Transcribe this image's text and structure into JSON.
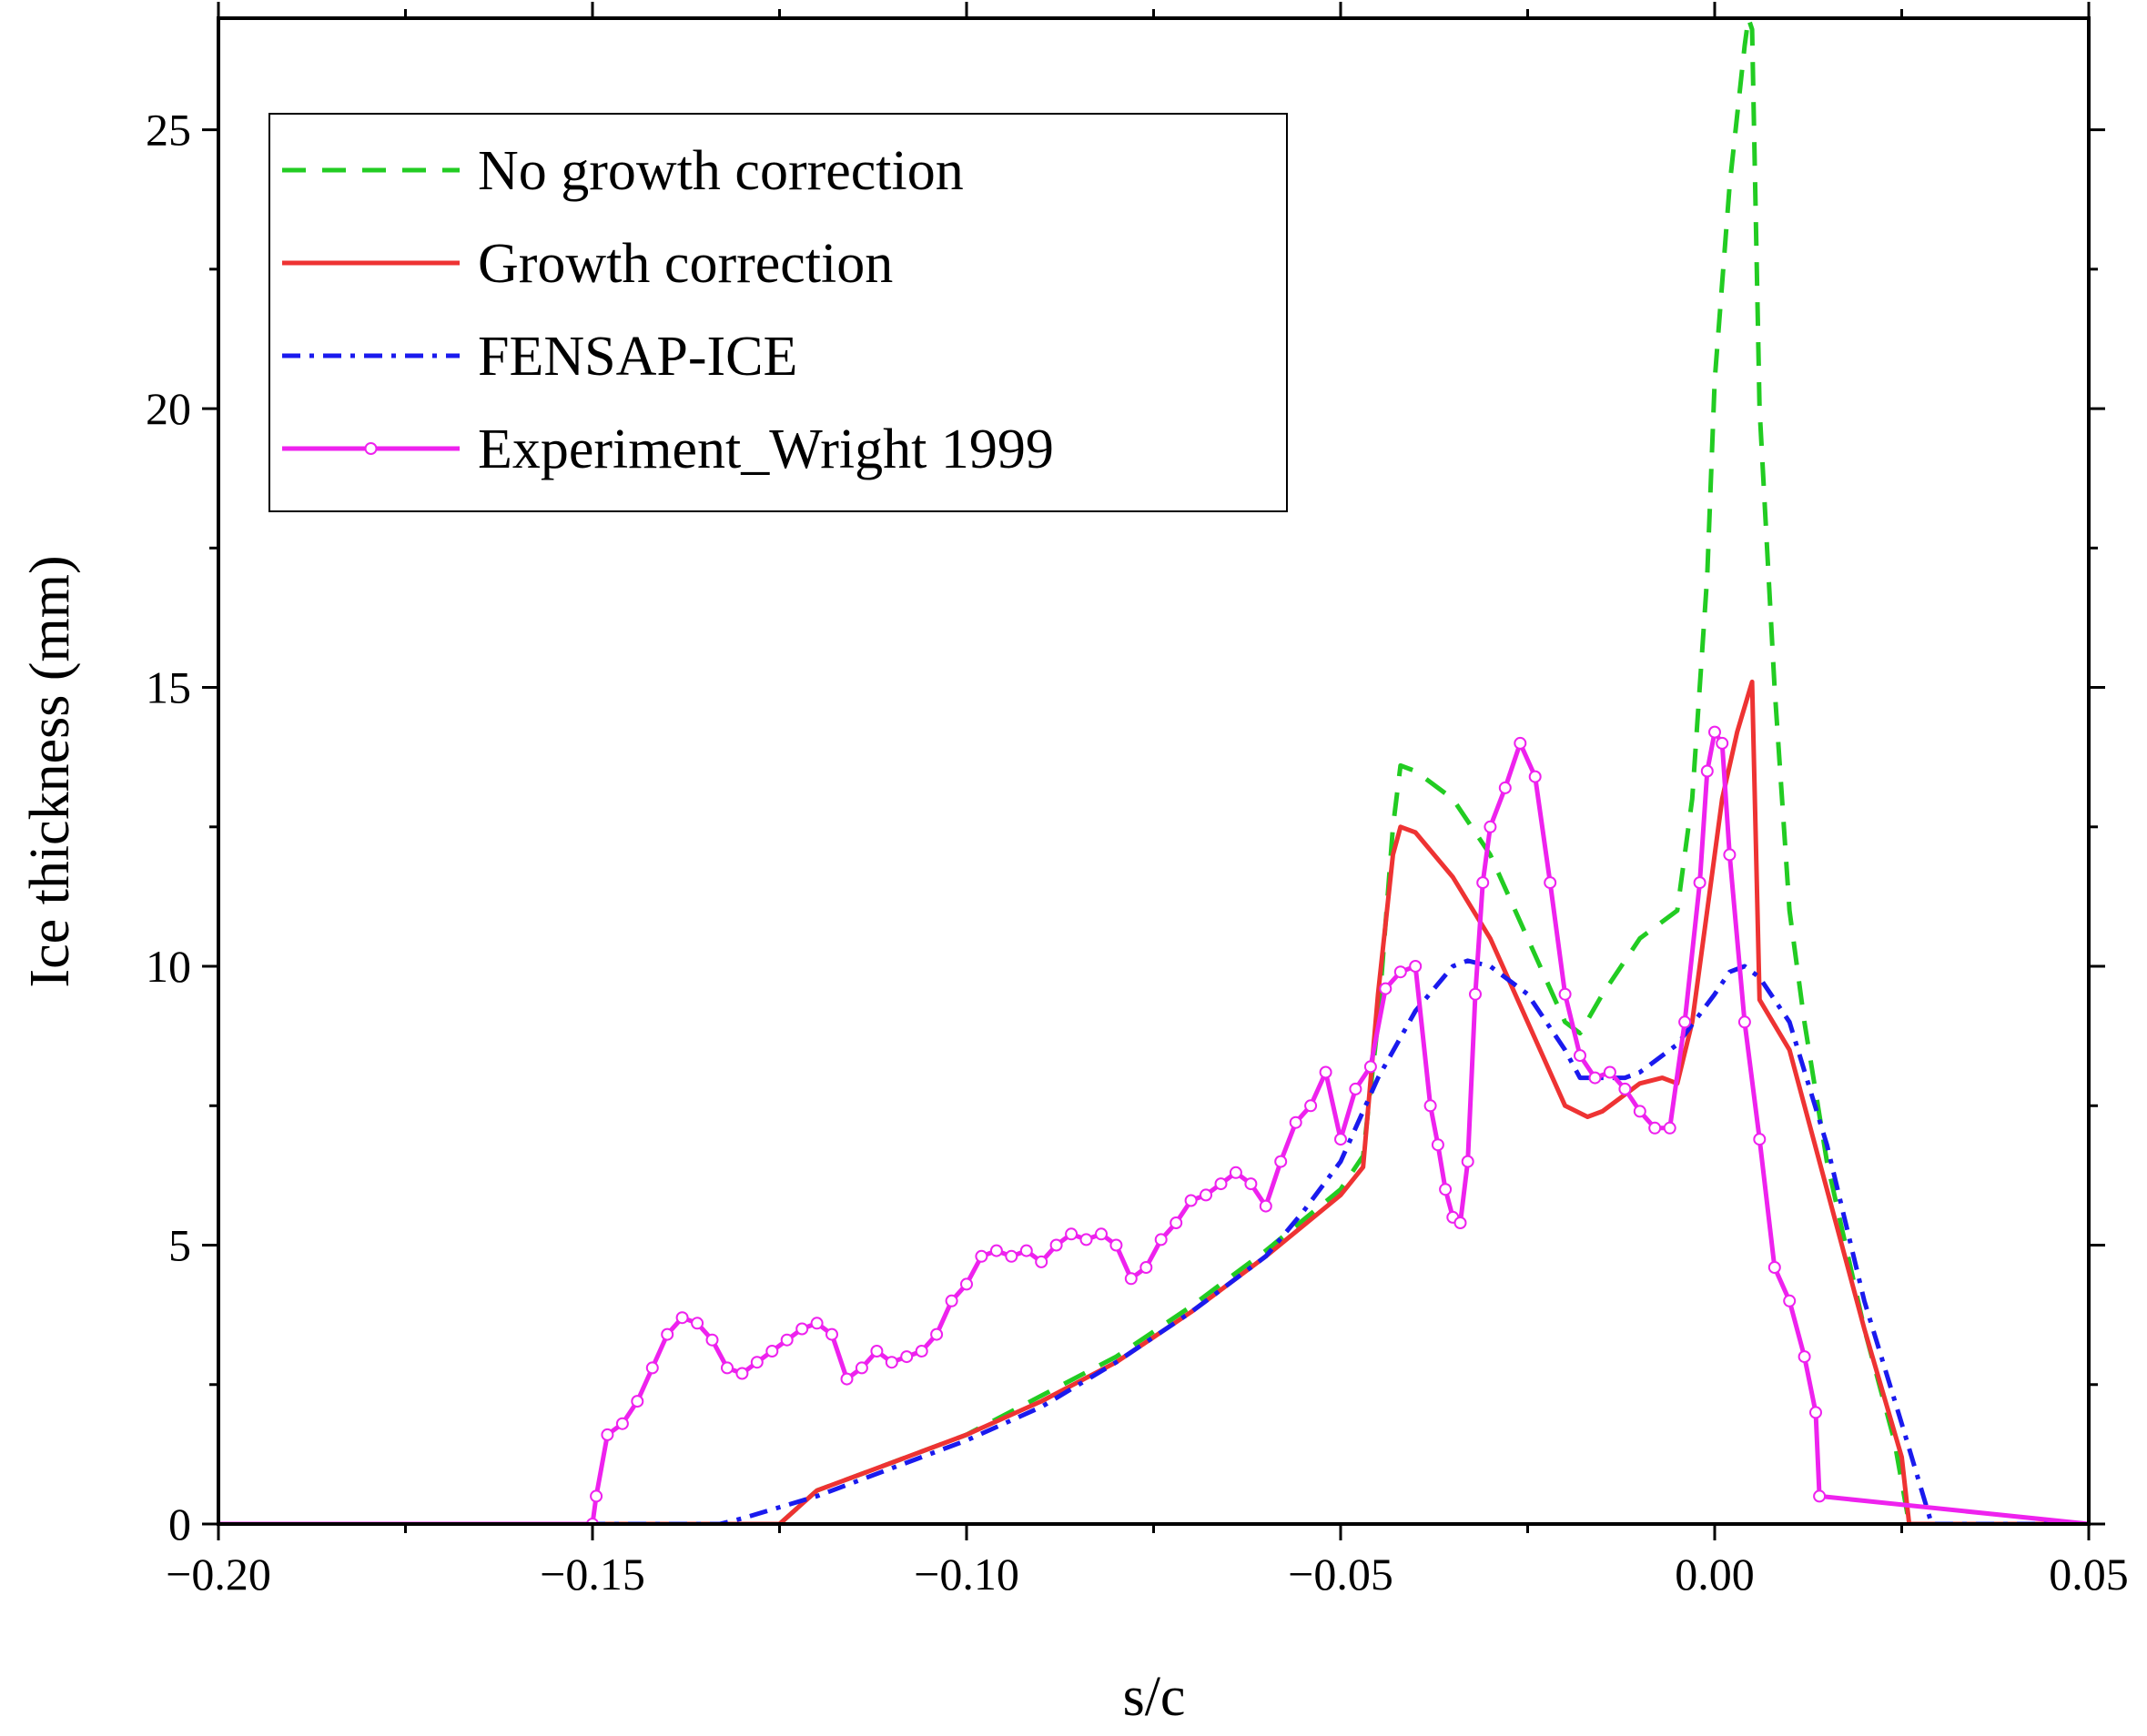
{
  "chart_data": {
    "type": "line",
    "title": "",
    "xlabel": "s/c",
    "ylabel": "Ice thickness (mm)",
    "xlim": [
      -0.2,
      0.05
    ],
    "ylim": [
      0,
      27
    ],
    "x_ticks": [
      -0.2,
      -0.15,
      -0.1,
      -0.05,
      0.0,
      0.05
    ],
    "x_tick_labels": [
      "−0.20",
      "−0.15",
      "−0.10",
      "−0.05",
      "0.00",
      "0.05"
    ],
    "y_ticks": [
      0,
      5,
      10,
      15,
      20,
      25
    ],
    "y_tick_labels": [
      "0",
      "5",
      "10",
      "15",
      "20",
      "25"
    ],
    "grid": false,
    "legend_position": "top-left",
    "series": [
      {
        "name": "No growth correction",
        "color": "#22cc22",
        "style": "dashed",
        "x": [
          -0.2,
          -0.125,
          -0.12,
          -0.11,
          -0.1,
          -0.09,
          -0.08,
          -0.07,
          -0.06,
          -0.05,
          -0.047,
          -0.045,
          -0.043,
          -0.042,
          -0.04,
          -0.035,
          -0.03,
          -0.025,
          -0.02,
          -0.018,
          -0.015,
          -0.01,
          -0.005,
          -0.003,
          -0.001,
          0.0,
          0.002,
          0.004,
          0.0045,
          0.005,
          0.006,
          0.008,
          0.01,
          0.012,
          0.015,
          0.02,
          0.024,
          0.026,
          0.05
        ],
        "y": [
          0,
          0,
          0.6,
          1.1,
          1.6,
          2.3,
          3.0,
          3.9,
          4.9,
          6.0,
          6.6,
          9.0,
          12.5,
          13.6,
          13.5,
          13.0,
          12.0,
          10.5,
          9.0,
          8.8,
          9.5,
          10.5,
          11.0,
          13.0,
          17.0,
          20.5,
          24.0,
          26.5,
          27.0,
          26.8,
          20.0,
          15.0,
          11.0,
          9.0,
          6.5,
          3.5,
          1.5,
          0,
          0
        ]
      },
      {
        "name": "Growth correction",
        "color": "#ee3333",
        "style": "solid",
        "x": [
          -0.2,
          -0.125,
          -0.12,
          -0.11,
          -0.1,
          -0.09,
          -0.08,
          -0.07,
          -0.06,
          -0.05,
          -0.047,
          -0.045,
          -0.043,
          -0.042,
          -0.04,
          -0.035,
          -0.03,
          -0.025,
          -0.02,
          -0.017,
          -0.015,
          -0.01,
          -0.007,
          -0.005,
          -0.003,
          -0.001,
          0.001,
          0.003,
          0.005,
          0.006,
          0.01,
          0.015,
          0.02,
          0.025,
          0.026,
          0.05
        ],
        "y": [
          0,
          0,
          0.6,
          1.1,
          1.6,
          2.2,
          2.9,
          3.8,
          4.8,
          5.9,
          6.4,
          9.5,
          12.0,
          12.5,
          12.4,
          11.6,
          10.5,
          9.0,
          7.5,
          7.3,
          7.4,
          7.9,
          8.0,
          7.9,
          9.0,
          11.0,
          13.0,
          14.2,
          15.1,
          9.4,
          8.5,
          6.0,
          3.5,
          1.2,
          0,
          0
        ]
      },
      {
        "name": "FENSAP-ICE",
        "color": "#1a1aee",
        "style": "dashdot",
        "x": [
          -0.2,
          -0.133,
          -0.13,
          -0.125,
          -0.12,
          -0.11,
          -0.1,
          -0.09,
          -0.08,
          -0.07,
          -0.06,
          -0.055,
          -0.05,
          -0.045,
          -0.04,
          -0.035,
          -0.033,
          -0.03,
          -0.025,
          -0.02,
          -0.018,
          -0.015,
          -0.012,
          -0.01,
          -0.005,
          0.0,
          0.002,
          0.004,
          0.006,
          0.01,
          0.015,
          0.02,
          0.025,
          0.029,
          0.05
        ],
        "y": [
          0,
          0,
          0.1,
          0.3,
          0.5,
          1.0,
          1.5,
          2.1,
          2.9,
          3.8,
          4.8,
          5.6,
          6.5,
          8.0,
          9.2,
          10.0,
          10.1,
          10.0,
          9.5,
          8.5,
          8.0,
          8.0,
          8.0,
          8.1,
          8.6,
          9.5,
          9.9,
          10.0,
          9.8,
          9.0,
          6.8,
          4.0,
          1.8,
          0,
          0
        ]
      },
      {
        "name": "Experiment_Wright 1999",
        "color": "#ee22ee",
        "style": "solid-marker",
        "x": [
          -0.2,
          -0.15,
          -0.1495,
          -0.148,
          -0.146,
          -0.144,
          -0.142,
          -0.14,
          -0.138,
          -0.136,
          -0.134,
          -0.132,
          -0.13,
          -0.128,
          -0.126,
          -0.124,
          -0.122,
          -0.12,
          -0.118,
          -0.116,
          -0.114,
          -0.112,
          -0.11,
          -0.108,
          -0.106,
          -0.104,
          -0.102,
          -0.1,
          -0.098,
          -0.096,
          -0.094,
          -0.092,
          -0.09,
          -0.088,
          -0.086,
          -0.084,
          -0.082,
          -0.08,
          -0.078,
          -0.076,
          -0.074,
          -0.072,
          -0.07,
          -0.068,
          -0.066,
          -0.064,
          -0.062,
          -0.06,
          -0.058,
          -0.056,
          -0.054,
          -0.052,
          -0.05,
          -0.048,
          -0.046,
          -0.044,
          -0.042,
          -0.04,
          -0.038,
          -0.037,
          -0.036,
          -0.035,
          -0.034,
          -0.033,
          -0.032,
          -0.031,
          -0.03,
          -0.028,
          -0.026,
          -0.024,
          -0.022,
          -0.02,
          -0.018,
          -0.016,
          -0.014,
          -0.012,
          -0.01,
          -0.008,
          -0.006,
          -0.004,
          -0.002,
          -0.001,
          0.0,
          0.001,
          0.002,
          0.004,
          0.006,
          0.008,
          0.01,
          0.012,
          0.0135,
          0.014,
          0.05
        ],
        "y": [
          0,
          0,
          0.5,
          1.6,
          1.8,
          2.2,
          2.8,
          3.4,
          3.7,
          3.6,
          3.3,
          2.8,
          2.7,
          2.9,
          3.1,
          3.3,
          3.5,
          3.6,
          3.4,
          2.6,
          2.8,
          3.1,
          2.9,
          3.0,
          3.1,
          3.4,
          4.0,
          4.3,
          4.8,
          4.9,
          4.8,
          4.9,
          4.7,
          5.0,
          5.2,
          5.1,
          5.2,
          5.0,
          4.4,
          4.6,
          5.1,
          5.4,
          5.8,
          5.9,
          6.1,
          6.3,
          6.1,
          5.7,
          6.5,
          7.2,
          7.5,
          8.1,
          6.9,
          7.8,
          8.2,
          9.6,
          9.9,
          10.0,
          7.5,
          6.8,
          6.0,
          5.5,
          5.4,
          6.5,
          9.5,
          11.5,
          12.5,
          13.2,
          14.0,
          13.4,
          11.5,
          9.5,
          8.4,
          8.0,
          8.1,
          7.8,
          7.4,
          7.1,
          7.1,
          9.0,
          11.5,
          13.5,
          14.2,
          14.0,
          12.0,
          9.0,
          6.9,
          4.6,
          4.0,
          3.0,
          2.0,
          0.5,
          0
        ]
      }
    ]
  }
}
